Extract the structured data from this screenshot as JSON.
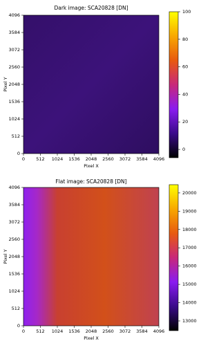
{
  "chart_data": [
    {
      "type": "image",
      "title": "Dark image: SCA20828 [DN]",
      "xlabel": "Pixel X",
      "ylabel": "Pixel Y",
      "xlim": [
        0,
        4096
      ],
      "ylim": [
        0,
        4096
      ],
      "xticks": [
        0,
        512,
        1024,
        1536,
        2048,
        2560,
        3072,
        3584,
        4096
      ],
      "yticks": [
        0,
        512,
        1024,
        1536,
        2048,
        2560,
        3072,
        3584,
        4096
      ],
      "clim": [
        -6,
        100
      ],
      "cticks": [
        0,
        20,
        40,
        60,
        80,
        100
      ],
      "colormap": [
        "#000000",
        "#3a0a8a",
        "#8a1cf0",
        "#c8287a",
        "#e85a10",
        "#f8a800",
        "#ffff00"
      ]
    },
    {
      "type": "image",
      "title": "Flat image: SCA20828 [DN]",
      "xlabel": "Pixel X",
      "ylabel": "Pixel Y",
      "xlim": [
        0,
        4096
      ],
      "ylim": [
        0,
        4096
      ],
      "xticks": [
        0,
        512,
        1024,
        1536,
        2048,
        2560,
        3072,
        3584,
        4096
      ],
      "yticks": [
        0,
        512,
        1024,
        1536,
        2048,
        2560,
        3072,
        3584,
        4096
      ],
      "clim": [
        12470,
        20450
      ],
      "cticks": [
        13000,
        14000,
        15000,
        16000,
        17000,
        18000,
        19000,
        20000
      ],
      "colormap": [
        "#000000",
        "#3a0a8a",
        "#8a1cf0",
        "#c8287a",
        "#e85a10",
        "#f8a800",
        "#ffff00"
      ]
    }
  ]
}
